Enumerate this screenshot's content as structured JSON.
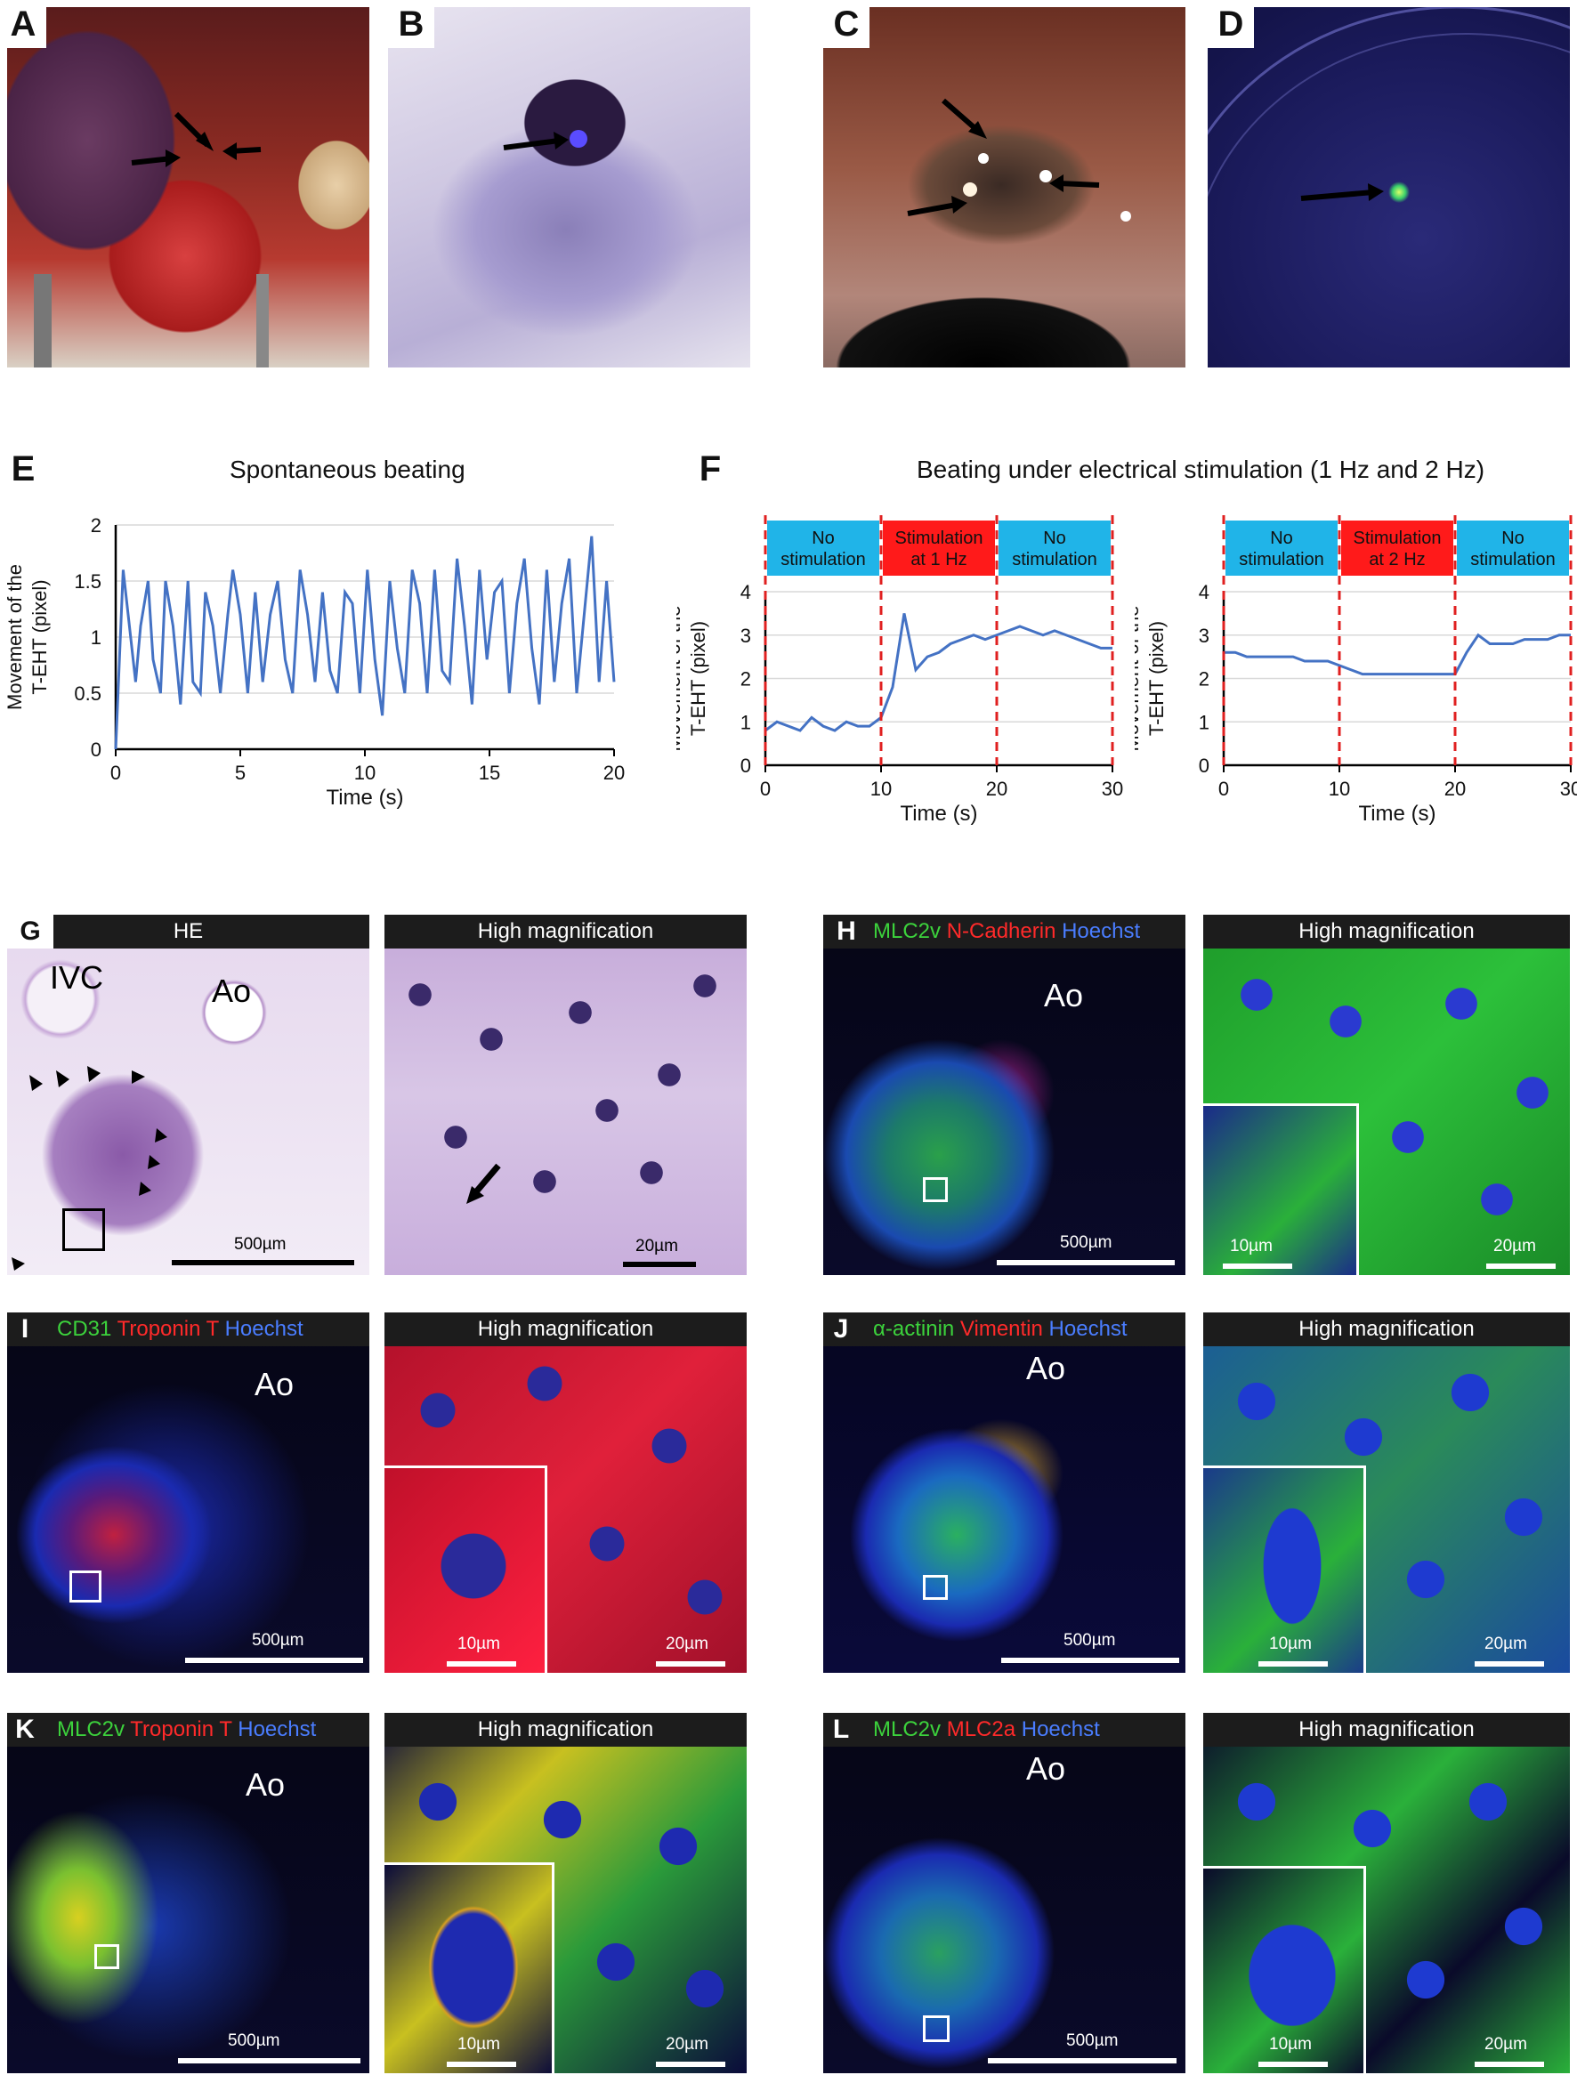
{
  "panels": {
    "A": "A",
    "B": "B",
    "C": "C",
    "D": "D",
    "E": "E",
    "F": "F",
    "G": "G",
    "H": "H",
    "I": "I",
    "J": "J",
    "K": "K",
    "L": "L"
  },
  "panel_e": {
    "title": "Spontaneous beating",
    "ylabel_line1": "Movement of the",
    "ylabel_line2": "T-EHT (pixel)",
    "xlabel": "Time (s)"
  },
  "panel_f": {
    "title": "Beating under electrical stimulation (1 Hz and 2 Hz)",
    "ylabel_line1": "Movement of the",
    "ylabel_line2": "T-EHT (pixel)",
    "xlabel": "Time (s)",
    "left_segments": [
      "No stimulation",
      "Stimulation at 1 Hz",
      "No stimulation"
    ],
    "right_segments": [
      "No stimulation",
      "Stimulation at 2 Hz",
      "No stimulation"
    ]
  },
  "histology": {
    "he": "HE",
    "high_mag": "High magnification",
    "ivc": "IVC",
    "ao": "Ao",
    "scale_500": "500µm",
    "scale_20": "20µm",
    "scale_10": "10µm",
    "h_stain": [
      "MLC2v",
      "N-Cadherin",
      "Hoechst"
    ],
    "i_stain": [
      "CD31",
      "Troponin T",
      "Hoechst"
    ],
    "j_stain": [
      "α-actinin",
      "Vimentin",
      "Hoechst"
    ],
    "k_stain": [
      "MLC2v",
      "Troponin T",
      "Hoechst"
    ],
    "l_stain": [
      "MLC2v",
      "MLC2a",
      "Hoechst"
    ]
  },
  "colors": {
    "line": "#4472c4",
    "no_stim": "#20b4e8",
    "stim": "#ff1a1a",
    "green": "#3cd23c",
    "red": "#ff2a2a",
    "blue": "#4a7dff"
  },
  "chart_data": [
    {
      "type": "line",
      "title": "Spontaneous beating",
      "xlabel": "Time (s)",
      "ylabel": "Movement of the T-EHT (pixel)",
      "xlim": [
        0,
        20
      ],
      "ylim": [
        0,
        2
      ],
      "xticks": [
        0,
        5,
        10,
        15,
        20
      ],
      "yticks": [
        0,
        0.5,
        1,
        1.5,
        2
      ],
      "grid": true,
      "series": [
        {
          "x": [
            0,
            0.3,
            0.5,
            0.8,
            1.0,
            1.3,
            1.5,
            1.8,
            2.0,
            2.3,
            2.6,
            2.9,
            3.1,
            3.4,
            3.6,
            3.9,
            4.2,
            4.5,
            4.7,
            5.0,
            5.3,
            5.6,
            5.9,
            6.2,
            6.5,
            6.8,
            7.1,
            7.4,
            7.7,
            8.0,
            8.3,
            8.6,
            8.9,
            9.2,
            9.5,
            9.8,
            10.1,
            10.4,
            10.7,
            11.0,
            11.3,
            11.6,
            11.9,
            12.2,
            12.5,
            12.8,
            13.1,
            13.4,
            13.7,
            14.0,
            14.3,
            14.6,
            14.9,
            15.2,
            15.5,
            15.8,
            16.1,
            16.4,
            16.7,
            17.0,
            17.3,
            17.6,
            17.9,
            18.2,
            18.5,
            18.8,
            19.1,
            19.4,
            19.7,
            20.0
          ],
          "y": [
            0,
            1.6,
            1.2,
            0.6,
            1.1,
            1.5,
            0.8,
            0.5,
            1.5,
            1.1,
            0.4,
            1.5,
            0.6,
            0.5,
            1.4,
            1.1,
            0.5,
            1.2,
            1.6,
            1.2,
            0.5,
            1.4,
            0.6,
            1.2,
            1.5,
            0.8,
            0.5,
            1.6,
            1.2,
            0.6,
            1.4,
            0.7,
            0.5,
            1.4,
            1.3,
            0.5,
            1.6,
            0.8,
            0.3,
            1.5,
            0.9,
            0.5,
            1.6,
            1.3,
            0.5,
            1.6,
            0.7,
            0.6,
            1.7,
            1.1,
            0.4,
            1.6,
            0.8,
            1.4,
            1.5,
            0.5,
            1.3,
            1.7,
            0.9,
            0.4,
            1.6,
            0.6,
            1.3,
            1.7,
            0.5,
            1.2,
            1.9,
            0.6,
            1.5,
            0.6
          ]
        }
      ]
    },
    {
      "type": "line",
      "title": "Beating under electrical stimulation (1 Hz and 2 Hz)",
      "xlabel": "Time (s)",
      "ylabel": "Movement of the T-EHT (pixel)",
      "xlim": [
        0,
        30
      ],
      "ylim": [
        0,
        4
      ],
      "xticks": [
        0,
        10,
        20,
        30
      ],
      "yticks": [
        0,
        1,
        2,
        3,
        4
      ],
      "series": [
        {
          "name": "Stimulation at 1 Hz",
          "x": [
            0,
            1,
            2,
            3,
            4,
            5,
            6,
            7,
            8,
            9,
            10,
            11,
            12,
            13,
            14,
            15,
            16,
            17,
            18,
            19,
            20,
            21,
            22,
            23,
            24,
            25,
            26,
            27,
            28,
            29,
            30
          ],
          "y": [
            0.8,
            1.0,
            0.9,
            0.8,
            1.1,
            0.9,
            0.8,
            1.0,
            0.9,
            0.9,
            1.1,
            1.8,
            3.5,
            2.2,
            2.5,
            2.6,
            2.8,
            2.9,
            3.0,
            2.9,
            3.0,
            3.1,
            3.2,
            3.1,
            3.0,
            3.1,
            3.0,
            2.9,
            2.8,
            2.7,
            2.7
          ]
        }
      ]
    },
    {
      "type": "line",
      "title": "Beating under electrical stimulation (1 Hz and 2 Hz)",
      "xlabel": "Time (s)",
      "ylabel": "Movement of the T-EHT (pixel)",
      "xlim": [
        0,
        30
      ],
      "ylim": [
        0,
        4
      ],
      "xticks": [
        0,
        10,
        20,
        30
      ],
      "yticks": [
        0,
        1,
        2,
        3,
        4
      ],
      "series": [
        {
          "name": "Stimulation at 2 Hz",
          "x": [
            0,
            1,
            2,
            3,
            4,
            5,
            6,
            7,
            8,
            9,
            10,
            11,
            12,
            13,
            14,
            15,
            16,
            17,
            18,
            19,
            20,
            21,
            22,
            23,
            24,
            25,
            26,
            27,
            28,
            29,
            30
          ],
          "y": [
            2.6,
            2.6,
            2.5,
            2.5,
            2.5,
            2.5,
            2.5,
            2.4,
            2.4,
            2.4,
            2.3,
            2.2,
            2.1,
            2.1,
            2.1,
            2.1,
            2.1,
            2.1,
            2.1,
            2.1,
            2.1,
            2.6,
            3.0,
            2.8,
            2.8,
            2.8,
            2.9,
            2.9,
            2.9,
            3.0,
            3.0
          ]
        }
      ]
    }
  ]
}
